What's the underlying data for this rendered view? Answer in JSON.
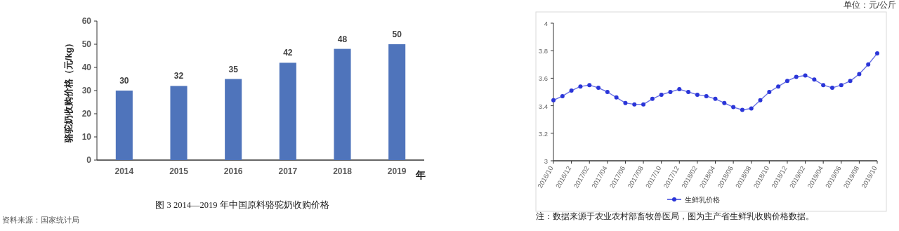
{
  "chart_data": [
    {
      "type": "bar",
      "title": "图 3 2014—2019 年中国原料骆驼奶收购价格",
      "xlabel": "年",
      "ylabel": "骆驼奶收购价格（元/kg）",
      "categories": [
        "2014",
        "2015",
        "2016",
        "2017",
        "2018",
        "2019"
      ],
      "values": [
        30,
        32,
        35,
        42,
        48,
        50
      ],
      "color": "#4f74bb",
      "ylim": [
        0,
        60
      ],
      "yticks": [
        0,
        10,
        20,
        30,
        40,
        50,
        60
      ],
      "data_labels": true,
      "annotations": [
        "资料来源：国家统计局"
      ]
    },
    {
      "type": "line",
      "categories": [
        "2016/10",
        null,
        "2016/12",
        null,
        "2017/02",
        null,
        "2017/04",
        null,
        "2017/06",
        null,
        "2017/08",
        null,
        "2017/10",
        null,
        "2017/12",
        null,
        "2018/02",
        null,
        "2018/04",
        null,
        "2018/06",
        null,
        "2018/08",
        null,
        "2018/10",
        null,
        "2018/12",
        null,
        "2019/02",
        null,
        "2019/04",
        null,
        "2019/06",
        null,
        "2019/08",
        null,
        "2019/10"
      ],
      "series": [
        {
          "name": "生鲜乳价格",
          "color": "#2a35d8",
          "values": [
            3.44,
            3.47,
            3.51,
            3.54,
            3.55,
            3.53,
            3.5,
            3.46,
            3.42,
            3.41,
            3.41,
            3.45,
            3.48,
            3.5,
            3.52,
            3.5,
            3.48,
            3.47,
            3.45,
            3.42,
            3.39,
            3.37,
            3.38,
            3.44,
            3.5,
            3.54,
            3.58,
            3.61,
            3.62,
            3.59,
            3.55,
            3.53,
            3.55,
            3.58,
            3.63,
            3.7,
            3.78
          ]
        }
      ],
      "ylim": [
        3,
        4
      ],
      "yticks": [
        3,
        3.2,
        3.4,
        3.6,
        3.8,
        4
      ],
      "marker": "circle",
      "line_style": "solid",
      "legend": "bottom",
      "annotations": [
        "单位：元/公斤",
        "注：数据来源于农业农村部畜牧兽医局，图为主产省生鲜乳收购价格数据。"
      ]
    }
  ]
}
